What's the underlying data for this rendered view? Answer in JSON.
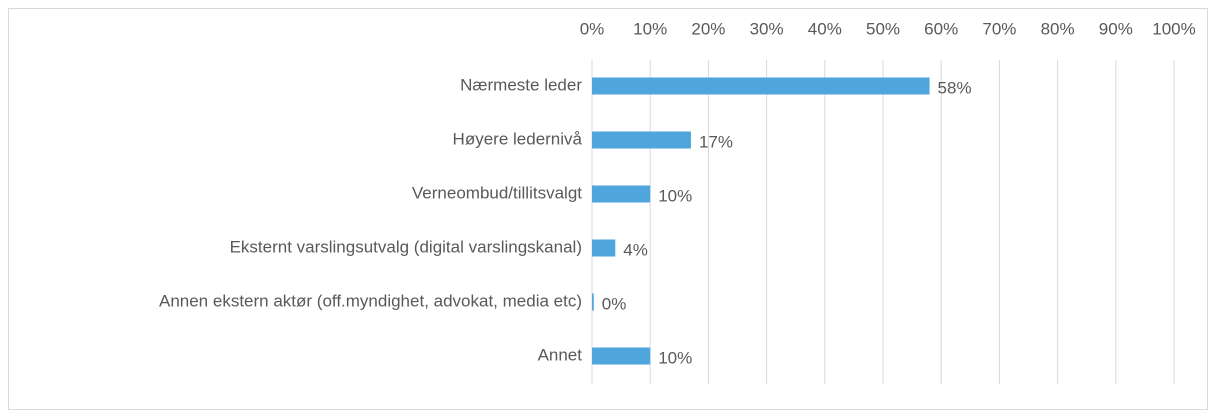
{
  "chart_data": {
    "type": "barh",
    "categories": [
      "Nærmeste leder",
      "Høyere ledernivå",
      "Verneombud/tillitsvalgt",
      "Eksternt varslingsutvalg (digital varslingskanal)",
      "Annen ekstern aktør (off.myndighet, advokat, media etc)",
      "Annet"
    ],
    "values": [
      58,
      17,
      10,
      4,
      0.3,
      10
    ],
    "value_labels": [
      "58%",
      "17%",
      "10%",
      "4%",
      "0%",
      "10%"
    ],
    "color": "#4ea6dc",
    "xlim": [
      0,
      100
    ],
    "xticks": [
      {
        "value": 0,
        "label": "0%"
      },
      {
        "value": 10,
        "label": "10%"
      },
      {
        "value": 20,
        "label": "20%"
      },
      {
        "value": 30,
        "label": "30%"
      },
      {
        "value": 40,
        "label": "40%"
      },
      {
        "value": 50,
        "label": "50%"
      },
      {
        "value": 60,
        "label": "60%"
      },
      {
        "value": 70,
        "label": "70%"
      },
      {
        "value": 80,
        "label": "80%"
      },
      {
        "value": 90,
        "label": "90%"
      },
      {
        "value": 100,
        "label": "100%"
      }
    ],
    "grid": true
  }
}
